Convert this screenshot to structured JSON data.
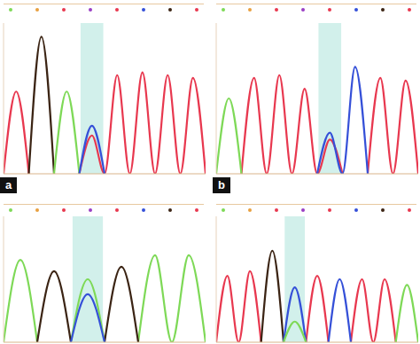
{
  "chart_data": [
    {
      "type": "line",
      "label": "a",
      "tick_labels": false,
      "grid": false,
      "xlim": [
        -0.5,
        7.5
      ],
      "ylim": [
        0,
        110
      ],
      "highlight": 3,
      "x": [
        -0.5,
        0,
        0.5,
        1,
        1.5,
        2,
        2.5,
        3,
        3.5,
        4,
        4.5,
        5,
        5.5,
        6,
        6.5,
        7,
        7.5
      ],
      "series": [
        {
          "color": "#e8384f",
          "values": [
            0,
            60,
            0,
            null,
            null,
            null,
            0,
            28,
            0,
            72,
            0,
            74,
            0,
            72,
            0,
            70,
            0
          ]
        },
        {
          "color": "#3b2414",
          "values": [
            null,
            null,
            0,
            100,
            0,
            null,
            null,
            null,
            null,
            null,
            null,
            null,
            null,
            null,
            null,
            null,
            null
          ]
        },
        {
          "color": "#7ed957",
          "values": [
            null,
            null,
            null,
            null,
            0,
            60,
            0,
            null,
            null,
            null,
            null,
            null,
            null,
            null,
            null,
            null,
            null
          ]
        },
        {
          "color": "#3550d8",
          "values": [
            null,
            null,
            null,
            null,
            null,
            null,
            0,
            35,
            0,
            null,
            null,
            null,
            null,
            null,
            null,
            null,
            null
          ]
        }
      ]
    },
    {
      "type": "line",
      "label": "b",
      "tick_labels": false,
      "grid": false,
      "xlim": [
        -0.5,
        7.5
      ],
      "ylim": [
        0,
        110
      ],
      "highlight": 4,
      "x": [
        -0.5,
        0,
        0.5,
        1,
        1.5,
        2,
        2.5,
        3,
        3.5,
        4,
        4.5,
        5,
        5.5,
        6,
        6.5,
        7,
        7.5
      ],
      "series": [
        {
          "color": "#e8384f",
          "values": [
            null,
            null,
            0,
            70,
            0,
            72,
            0,
            62,
            0,
            25,
            0,
            null,
            0,
            70,
            0,
            68,
            0
          ]
        },
        {
          "color": "#7ed957",
          "values": [
            0,
            55,
            0,
            null,
            null,
            null,
            null,
            null,
            null,
            null,
            null,
            null,
            null,
            null,
            null,
            null,
            null
          ]
        },
        {
          "color": "#3550d8",
          "values": [
            null,
            null,
            null,
            null,
            null,
            null,
            null,
            null,
            0,
            30,
            0,
            78,
            0,
            null,
            null,
            null,
            null
          ]
        }
      ]
    },
    {
      "type": "line",
      "tick_labels": false,
      "grid": false,
      "xlim": [
        -0.5,
        5.5
      ],
      "ylim": [
        0,
        110
      ],
      "highlight": 2,
      "x": [
        -0.5,
        0,
        0.5,
        1,
        1.5,
        2,
        2.5,
        3,
        3.5,
        4,
        4.5,
        5,
        5.5
      ],
      "series": [
        {
          "color": "#7ed957",
          "values": [
            0,
            72,
            0,
            null,
            0,
            55,
            0,
            null,
            0,
            76,
            0,
            76,
            0
          ]
        },
        {
          "color": "#3b2414",
          "values": [
            null,
            null,
            0,
            62,
            0,
            null,
            0,
            66,
            0,
            null,
            null,
            null,
            null
          ]
        },
        {
          "color": "#3550d8",
          "values": [
            null,
            null,
            null,
            null,
            0,
            42,
            0,
            null,
            null,
            null,
            null,
            null,
            null
          ]
        }
      ]
    },
    {
      "type": "line",
      "tick_labels": false,
      "grid": false,
      "xlim": [
        -0.5,
        8.5
      ],
      "ylim": [
        0,
        110
      ],
      "highlight": 3,
      "x": [
        -0.5,
        0,
        0.5,
        1,
        1.5,
        2,
        2.5,
        3,
        3.5,
        4,
        4.5,
        5,
        5.5,
        6,
        6.5,
        7,
        7.5,
        8,
        8.5
      ],
      "series": [
        {
          "color": "#e8384f",
          "values": [
            0,
            58,
            0,
            62,
            0,
            null,
            null,
            null,
            0,
            58,
            0,
            null,
            0,
            55,
            0,
            55,
            0,
            null,
            null
          ]
        },
        {
          "color": "#3b2414",
          "values": [
            null,
            null,
            null,
            null,
            0,
            80,
            0,
            null,
            null,
            null,
            null,
            null,
            null,
            null,
            null,
            null,
            null,
            null,
            null
          ]
        },
        {
          "color": "#3550d8",
          "values": [
            null,
            null,
            null,
            null,
            null,
            null,
            0,
            48,
            0,
            null,
            0,
            55,
            0,
            null,
            null,
            null,
            null,
            null,
            null
          ]
        },
        {
          "color": "#7ed957",
          "values": [
            null,
            null,
            null,
            null,
            null,
            null,
            0,
            18,
            0,
            null,
            null,
            null,
            null,
            null,
            null,
            null,
            0,
            50,
            0
          ]
        }
      ]
    }
  ]
}
